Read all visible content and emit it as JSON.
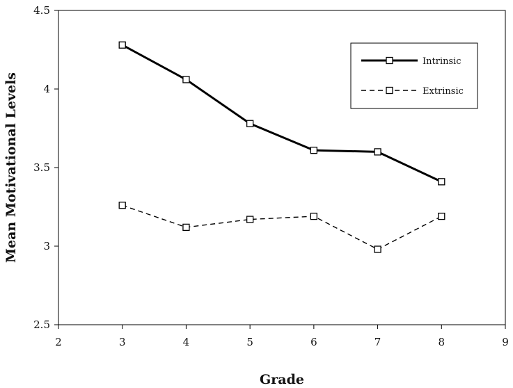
{
  "chart_data": {
    "type": "line",
    "title": "",
    "xlabel": "Grade",
    "ylabel": "Mean Motivational Levels",
    "xlim": [
      2,
      9
    ],
    "ylim": [
      2.5,
      4.5
    ],
    "x_ticks": [
      "2",
      "3",
      "4",
      "5",
      "6",
      "7",
      "8",
      "9"
    ],
    "y_ticks": [
      "2.5",
      "3",
      "3.5",
      "4",
      "4.5"
    ],
    "x": [
      3,
      4,
      5,
      6,
      7,
      8
    ],
    "grid": false,
    "legend_position": "top-right",
    "series": [
      {
        "name": "Intrinsic",
        "style": "solid",
        "color": "#000000",
        "values": [
          4.28,
          4.06,
          3.78,
          3.61,
          3.6,
          3.41
        ]
      },
      {
        "name": "Extrinsic",
        "style": "dashed",
        "color": "#000000",
        "values": [
          3.26,
          3.12,
          3.17,
          3.19,
          2.98,
          3.19
        ]
      }
    ]
  }
}
